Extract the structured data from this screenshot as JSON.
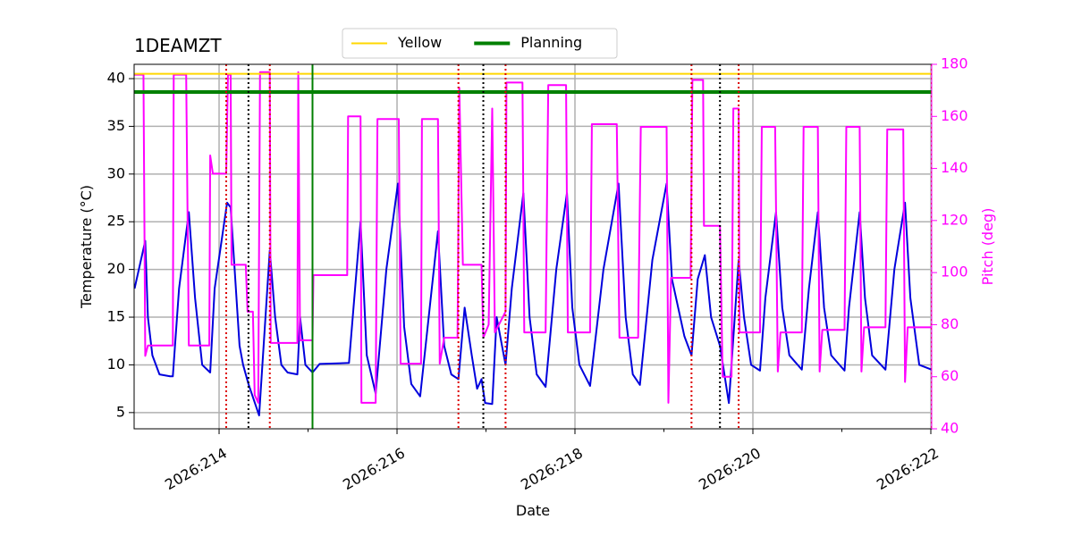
{
  "chart_data": {
    "type": "line",
    "title": "1DEAMZT",
    "xlabel": "Date",
    "ylabel": "Temperature (°C)",
    "y2label": "Pitch (deg)",
    "xlim": [
      213.045,
      222.01
    ],
    "ylim": [
      3.3,
      41.5
    ],
    "y2lim": [
      40,
      180
    ],
    "xticks": [
      {
        "value": 214,
        "label": "2026:214"
      },
      {
        "value": 216,
        "label": "2026:216"
      },
      {
        "value": 218,
        "label": "2026:218"
      },
      {
        "value": 220,
        "label": "2026:220"
      },
      {
        "value": 222,
        "label": "2026:222"
      }
    ],
    "xminor": [
      215,
      217,
      219,
      221
    ],
    "yticks": [
      5,
      10,
      15,
      20,
      25,
      30,
      35,
      40
    ],
    "y2ticks": [
      40,
      60,
      80,
      100,
      120,
      140,
      160,
      180
    ],
    "y2color": "#ff00ff",
    "grid": true,
    "legend": "upper center",
    "series": [
      {
        "color": "#0000dd",
        "axis": "y",
        "x": [
          213.05,
          213.17,
          213.2,
          213.25,
          213.33,
          213.45,
          213.48,
          213.55,
          213.66,
          213.73,
          213.81,
          213.9,
          213.95,
          214.09,
          214.13,
          214.23,
          214.27,
          214.33,
          214.45,
          214.57,
          214.63,
          214.7,
          214.77,
          214.88,
          214.91,
          214.97,
          215.05,
          215.13,
          215.46,
          215.59,
          215.66,
          215.76,
          215.88,
          216.01,
          216.08,
          216.16,
          216.26,
          216.46,
          216.53,
          216.61,
          216.69,
          216.76,
          216.84,
          216.9,
          216.95,
          216.99,
          217.07,
          217.12,
          217.22,
          217.29,
          217.42,
          217.49,
          217.57,
          217.67,
          217.79,
          217.91,
          217.97,
          218.05,
          218.17,
          218.32,
          218.49,
          218.57,
          218.65,
          218.73,
          218.87,
          219.03,
          219.09,
          219.23,
          219.31,
          219.38,
          219.46,
          219.53,
          219.63,
          219.73,
          219.84,
          219.9,
          219.98,
          220.08,
          220.14,
          220.26,
          220.33,
          220.41,
          220.55,
          220.63,
          220.73,
          220.8,
          220.88,
          221.03,
          221.08,
          221.2,
          221.26,
          221.34,
          221.49,
          221.59,
          221.71,
          221.77,
          221.87,
          222.01
        ],
        "values": [
          18,
          23,
          15,
          11,
          9,
          8.8,
          8.8,
          18,
          26,
          17,
          10,
          9.2,
          18,
          27,
          26.5,
          12,
          10,
          8,
          4.7,
          22,
          15,
          10,
          9.2,
          9,
          15,
          10,
          9.2,
          10.1,
          10.2,
          25,
          11,
          7,
          20,
          29,
          14,
          8,
          6.7,
          24,
          12,
          9,
          8.5,
          16,
          11,
          7.5,
          8.5,
          6,
          5.9,
          15,
          10,
          18,
          28,
          15,
          9,
          7.7,
          20,
          28,
          16,
          10,
          7.8,
          20,
          29,
          15,
          9,
          7.9,
          21,
          29,
          19,
          13,
          11,
          19,
          21.5,
          15,
          12,
          6,
          21,
          15,
          10,
          9.4,
          17,
          26,
          16,
          11,
          9.5,
          18,
          26,
          16,
          11,
          9.4,
          16,
          26,
          17,
          11,
          9.5,
          20,
          27,
          17,
          10,
          9.5
        ]
      },
      {
        "color": "#ff00ff",
        "axis": "y2",
        "x": [
          213.05,
          213.15,
          213.17,
          213.2,
          213.48,
          213.49,
          213.63,
          213.66,
          213.89,
          213.9,
          213.93,
          214.08,
          214.1,
          214.13,
          214.14,
          214.3,
          214.32,
          214.38,
          214.4,
          214.44,
          214.46,
          214.57,
          214.58,
          214.88,
          214.89,
          214.91,
          215.05,
          215.06,
          215.44,
          215.45,
          215.59,
          215.6,
          215.76,
          215.78,
          216.02,
          216.04,
          216.27,
          216.28,
          216.46,
          216.48,
          216.53,
          216.68,
          216.7,
          216.74,
          216.95,
          216.97,
          217.03,
          217.07,
          217.1,
          217.22,
          217.23,
          217.41,
          217.43,
          217.67,
          217.7,
          217.9,
          217.92,
          218.17,
          218.19,
          218.47,
          218.5,
          218.71,
          218.74,
          219.03,
          219.05,
          219.08,
          219.3,
          219.32,
          219.44,
          219.45,
          219.63,
          219.66,
          219.76,
          219.78,
          219.84,
          219.85,
          220.08,
          220.1,
          220.25,
          220.28,
          220.31,
          220.55,
          220.57,
          220.73,
          220.75,
          220.78,
          221.03,
          221.05,
          221.2,
          221.22,
          221.25,
          221.49,
          221.51,
          221.69,
          221.71,
          221.74,
          222.01
        ],
        "values": [
          176,
          176,
          68,
          72,
          72,
          176,
          176,
          72,
          72,
          145,
          138,
          138,
          176,
          176,
          103,
          103,
          85,
          85,
          53,
          50,
          177,
          177,
          73,
          73,
          177,
          74,
          74,
          99,
          99,
          160,
          160,
          50,
          50,
          159,
          159,
          65,
          65,
          159,
          159,
          65,
          75,
          75,
          171,
          103,
          103,
          75,
          80,
          163,
          77,
          85,
          173,
          173,
          77,
          77,
          172,
          172,
          77,
          77,
          157,
          157,
          75,
          75,
          156,
          156,
          50,
          98,
          98,
          174,
          174,
          118,
          118,
          60,
          60,
          163,
          163,
          77,
          77,
          156,
          156,
          62,
          77,
          77,
          156,
          156,
          62,
          78,
          78,
          156,
          156,
          62,
          79,
          79,
          155,
          155,
          58,
          79,
          79
        ]
      }
    ],
    "hlines": [
      {
        "name": "Yellow",
        "value": 40.5,
        "color": "#ffd700"
      },
      {
        "name": "Planning",
        "value": 38.6,
        "color": "#008000"
      }
    ],
    "vlines": [
      {
        "x": 215.05,
        "color": "#008000",
        "style": "solid"
      },
      {
        "x": 214.08,
        "color": "#dd0000",
        "style": "dotted"
      },
      {
        "x": 214.57,
        "color": "#dd0000",
        "style": "dotted"
      },
      {
        "x": 216.69,
        "color": "#dd0000",
        "style": "dotted"
      },
      {
        "x": 217.22,
        "color": "#dd0000",
        "style": "dotted"
      },
      {
        "x": 219.31,
        "color": "#dd0000",
        "style": "dotted"
      },
      {
        "x": 219.84,
        "color": "#dd0000",
        "style": "dotted"
      },
      {
        "x": 222.01,
        "color": "#dd0000",
        "style": "dotted"
      },
      {
        "x": 214.33,
        "color": "#000000",
        "style": "dotted"
      },
      {
        "x": 216.97,
        "color": "#000000",
        "style": "dotted"
      },
      {
        "x": 219.63,
        "color": "#000000",
        "style": "dotted"
      }
    ]
  }
}
